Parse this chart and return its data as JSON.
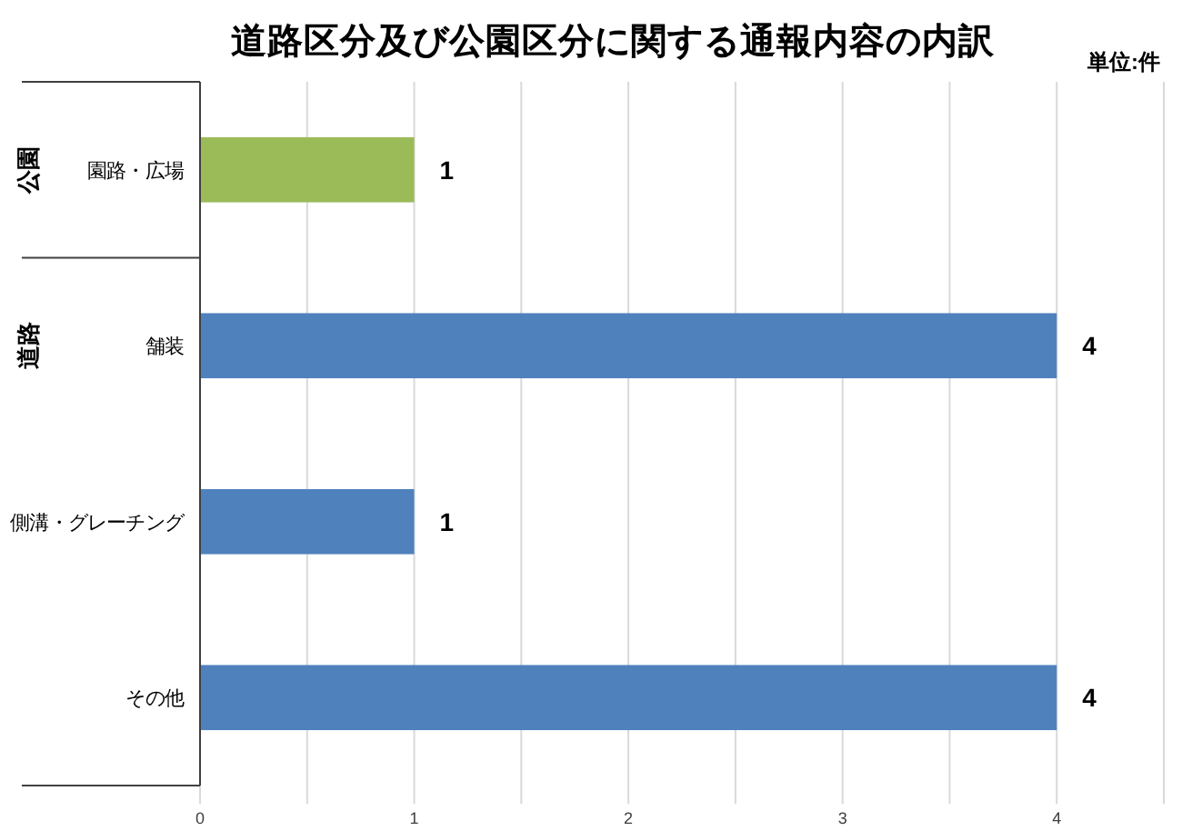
{
  "chart_data": {
    "type": "bar",
    "orientation": "horizontal",
    "title": "道路区分及び公園区分に関する通報内容の内訳",
    "annotations": [
      "単位:件",
      "公園",
      "道路"
    ],
    "categories": [
      "園路・広場",
      "舗装",
      "側溝・グレーチング",
      "その他"
    ],
    "values": [
      1,
      4,
      1,
      4
    ],
    "colors": [
      "#9bbb59",
      "#4f81bd",
      "#4f81bd",
      "#4f81bd"
    ],
    "xlim": [
      0,
      4.5
    ],
    "xticks": [
      0,
      {
        "value": 0.5,
        "label": null
      },
      1,
      {
        "value": 1.5,
        "label": null
      },
      2,
      {
        "value": 2.5,
        "label": null
      },
      3,
      {
        "value": 3.5,
        "label": null
      },
      4,
      {
        "value": 4.5,
        "label": null
      }
    ],
    "grid": "x",
    "data_labels": true
  }
}
